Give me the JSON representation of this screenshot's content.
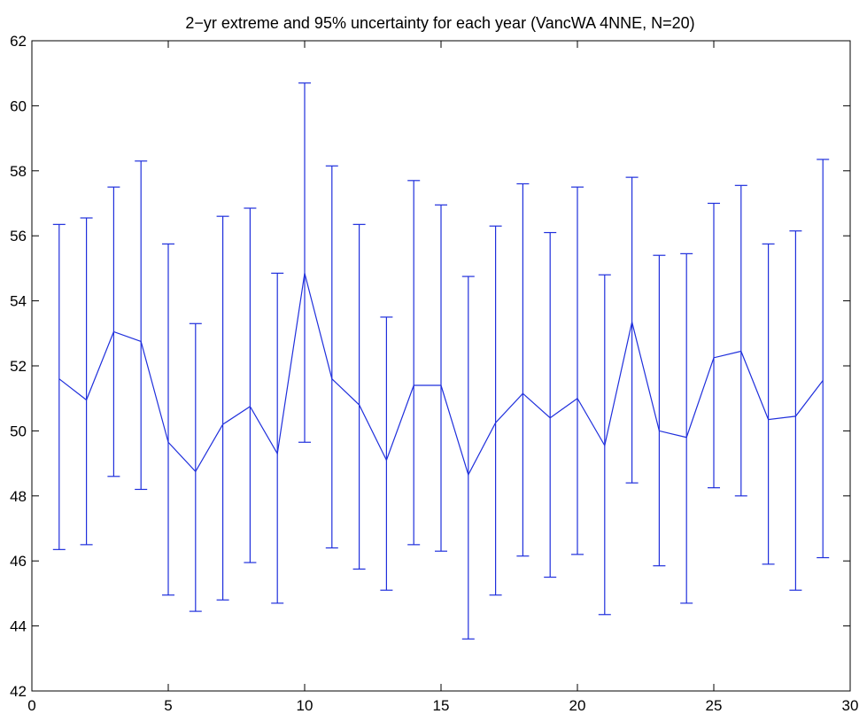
{
  "chart_data": {
    "type": "errorbar-line",
    "title": "2−yr extreme and 95% uncertainty for each year (VancWA 4NNE, N=20)",
    "xlabel": "",
    "ylabel": "",
    "xlim": [
      0,
      30
    ],
    "ylim": [
      42,
      62
    ],
    "xticks": [
      0,
      5,
      10,
      15,
      20,
      25,
      30
    ],
    "yticks": [
      42,
      44,
      46,
      48,
      50,
      52,
      54,
      56,
      58,
      60,
      62
    ],
    "xtick_labels": [
      "0",
      "5",
      "10",
      "15",
      "20",
      "25",
      "30"
    ],
    "ytick_labels": [
      "42",
      "44",
      "46",
      "48",
      "50",
      "52",
      "54",
      "56",
      "58",
      "60",
      "62"
    ],
    "grid": false,
    "legend": "none",
    "color": "#1f2fdc",
    "x": [
      1,
      2,
      3,
      4,
      5,
      6,
      7,
      8,
      9,
      10,
      11,
      12,
      13,
      14,
      15,
      16,
      17,
      18,
      19,
      20,
      21,
      22,
      23,
      24,
      25,
      26,
      27,
      28,
      29
    ],
    "values": [
      51.6,
      50.95,
      53.05,
      52.75,
      49.65,
      48.75,
      50.2,
      50.75,
      49.3,
      54.85,
      51.6,
      50.8,
      49.1,
      51.4,
      51.4,
      48.65,
      50.25,
      51.15,
      50.4,
      51.0,
      49.55,
      53.35,
      50.0,
      49.8,
      52.25,
      52.45,
      50.35,
      50.45,
      51.55
    ],
    "upper": [
      56.35,
      56.55,
      57.5,
      58.3,
      55.75,
      53.3,
      56.6,
      56.85,
      54.85,
      60.7,
      58.15,
      56.35,
      53.5,
      57.7,
      56.95,
      54.75,
      56.3,
      57.6,
      56.1,
      57.5,
      54.8,
      57.8,
      55.4,
      55.45,
      57.0,
      57.55,
      55.75,
      56.15,
      58.35
    ],
    "lower": [
      46.35,
      46.5,
      48.6,
      48.2,
      44.95,
      44.45,
      44.8,
      45.95,
      44.7,
      49.65,
      46.4,
      45.75,
      45.1,
      46.5,
      46.3,
      43.6,
      44.95,
      46.15,
      45.5,
      46.2,
      44.35,
      48.4,
      45.85,
      44.7,
      48.25,
      48.0,
      45.9,
      45.1,
      46.1
    ]
  }
}
